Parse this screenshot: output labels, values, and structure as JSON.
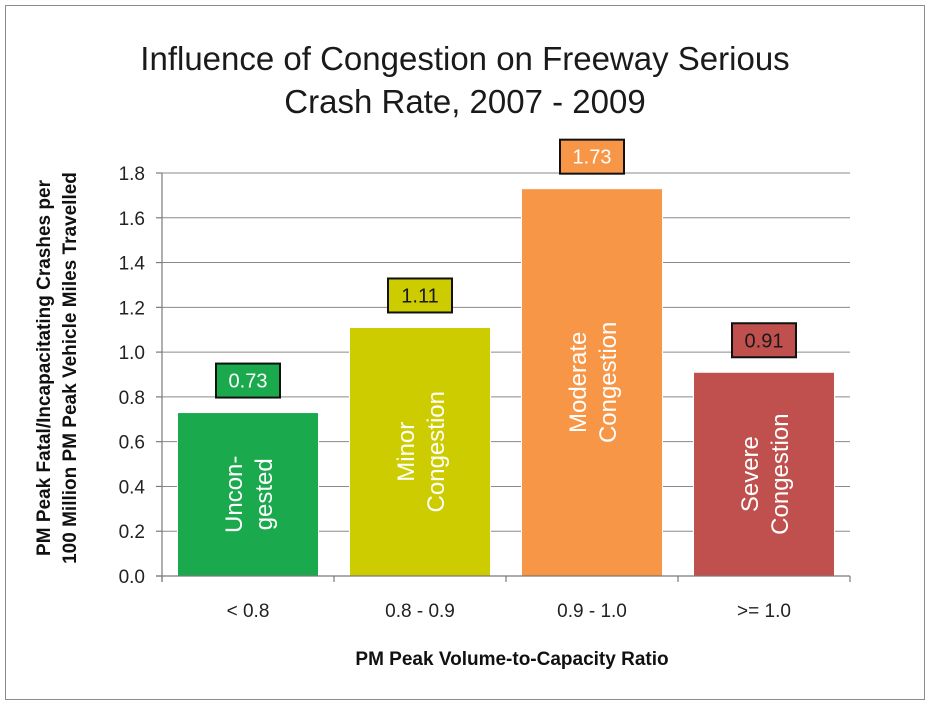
{
  "chart_data": {
    "type": "bar",
    "title": [
      "Influence of Congestion on Freeway Serious",
      "Crash Rate, 2007 - 2009"
    ],
    "xlabel": "PM Peak Volume-to-Capacity Ratio",
    "ylabel": [
      "PM Peak Fatal/Incapacitating Crashes per",
      "100 Million PM Peak Vehicle Miles Travelled"
    ],
    "categories": [
      "< 0.8",
      "0.8 - 0.9",
      "0.9 - 1.0",
      ">= 1.0"
    ],
    "values": [
      0.73,
      1.11,
      1.73,
      0.91
    ],
    "data_labels": [
      "0.73",
      "1.11",
      "1.73",
      "0.91"
    ],
    "bar_labels": [
      [
        "Uncon-",
        "gested"
      ],
      [
        "Minor",
        "Congestion"
      ],
      [
        "Moderate",
        "Congestion"
      ],
      [
        "Severe",
        "Congestion"
      ]
    ],
    "bar_colors": [
      "#1aa94d",
      "#cccc00",
      "#f79646",
      "#c0504d"
    ],
    "label_box_fill": [
      "#1aa94d",
      "#cccc00",
      "#f79646",
      "#c0504d"
    ],
    "label_text_color": [
      "#ffffff",
      "#1a1a1a",
      "#ffffff",
      "#1a1a1a"
    ],
    "ylim": [
      0,
      1.8
    ],
    "yticks": [
      "0.0",
      "0.2",
      "0.4",
      "0.6",
      "0.8",
      "1.0",
      "1.2",
      "1.4",
      "1.6",
      "1.8"
    ],
    "grid": true,
    "legend": "none"
  }
}
